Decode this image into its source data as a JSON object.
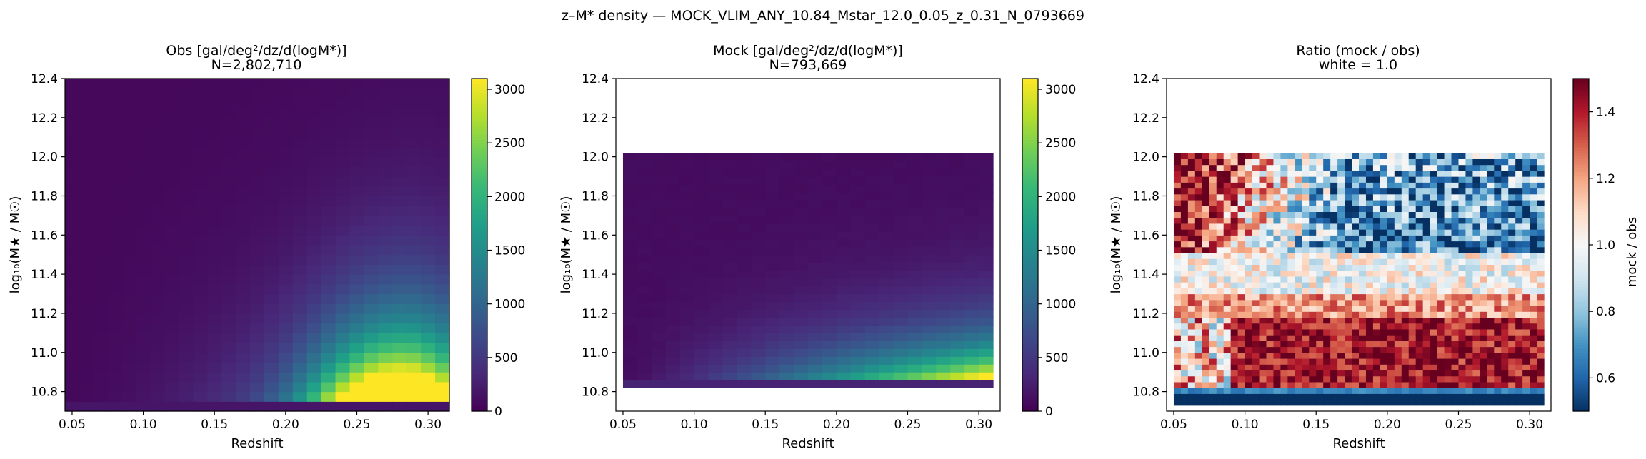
{
  "figure": {
    "suptitle": "z–M* density — MOCK_VLIM_ANY_10.84_Mstar_12.0_0.05_z_0.31_N_0793669"
  },
  "chart_data": [
    {
      "type": "heatmap",
      "panel": "obs",
      "title": "Obs  [gal/deg²/dz/d(logM*)]",
      "subtitle": "N=2,802,710",
      "xlabel": "Redshift",
      "ylabel": "log₁₀(M★ / M☉)",
      "xlim": [
        0.045,
        0.315
      ],
      "ylim": [
        10.7,
        12.4
      ],
      "xticks": [
        "0.05",
        "0.10",
        "0.15",
        "0.20",
        "0.25",
        "0.30"
      ],
      "yticks": [
        "10.8",
        "11.0",
        "11.2",
        "11.4",
        "11.6",
        "11.8",
        "12.0",
        "12.2",
        "12.4"
      ],
      "z_range": [
        0.045,
        0.315
      ],
      "mass_range": [
        10.7,
        12.4
      ],
      "colormap": "viridis",
      "colorbar": {
        "min": 0,
        "max": 3100,
        "ticks": [
          "0",
          "500",
          "1000",
          "1500",
          "2000",
          "2500",
          "3000"
        ]
      },
      "peak": {
        "z": 0.275,
        "logM": 10.82,
        "value": 3100
      }
    },
    {
      "type": "heatmap",
      "panel": "mock",
      "title": "Mock  [gal/deg²/dz/d(logM*)]",
      "subtitle": "N=793,669",
      "xlabel": "Redshift",
      "ylabel": "log₁₀(M★ / M☉)",
      "xlim": [
        0.045,
        0.315
      ],
      "ylim": [
        10.7,
        12.4
      ],
      "xticks": [
        "0.05",
        "0.10",
        "0.15",
        "0.20",
        "0.25",
        "0.30"
      ],
      "yticks": [
        "10.8",
        "11.0",
        "11.2",
        "11.4",
        "11.6",
        "11.8",
        "12.0",
        "12.2",
        "12.4"
      ],
      "z_range": [
        0.05,
        0.31
      ],
      "mass_range": [
        10.82,
        12.02
      ],
      "colormap": "viridis",
      "colorbar": {
        "min": 0,
        "max": 3100,
        "ticks": [
          "0",
          "500",
          "1000",
          "1500",
          "2000",
          "2500",
          "3000"
        ]
      },
      "saturated_region": {
        "z_min": 0.25,
        "z_max": 0.31,
        "logM_min": 10.84,
        "logM_max": 11.0
      }
    },
    {
      "type": "heatmap",
      "panel": "ratio",
      "title": "Ratio (mock / obs)",
      "subtitle": "white = 1.0",
      "xlabel": "Redshift",
      "ylabel": "log₁₀(M★ / M☉)",
      "xlim": [
        0.045,
        0.315
      ],
      "ylim": [
        10.7,
        12.4
      ],
      "xticks": [
        "0.05",
        "0.10",
        "0.15",
        "0.20",
        "0.25",
        "0.30"
      ],
      "yticks": [
        "10.8",
        "11.0",
        "11.2",
        "11.4",
        "11.6",
        "11.8",
        "12.0",
        "12.2",
        "12.4"
      ],
      "z_range": [
        0.05,
        0.31
      ],
      "mass_range": [
        10.73,
        12.02
      ],
      "colormap": "RdBu_r",
      "colorbar": {
        "min": 0.5,
        "max": 1.5,
        "label": "mock / obs",
        "ticks": [
          "0.6",
          "0.8",
          "1.0",
          "1.2",
          "1.4"
        ]
      },
      "low_mass_row_ratio": 0.5
    }
  ],
  "colors": {
    "viridis": [
      "#440154",
      "#482878",
      "#3e4989",
      "#31688e",
      "#26828e",
      "#1f9e89",
      "#35b779",
      "#6ece58",
      "#b5de2b",
      "#fde725"
    ],
    "rdbu_r": [
      "#053061",
      "#2166ac",
      "#4393c3",
      "#92c5de",
      "#d1e5f0",
      "#f7f7f7",
      "#fddbc7",
      "#f4a582",
      "#d6604d",
      "#b2182b",
      "#67001f"
    ]
  }
}
